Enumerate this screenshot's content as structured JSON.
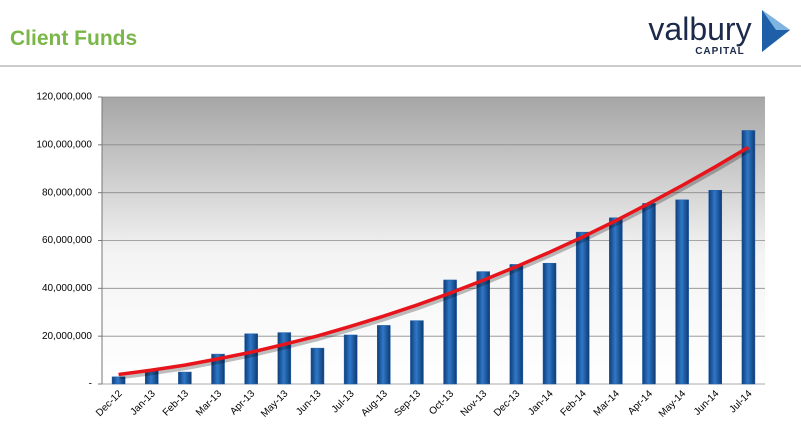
{
  "header": {
    "title": "Client Funds",
    "logo": "valbury",
    "logo_sub": "CAPITAL"
  },
  "chart_data": {
    "type": "bar",
    "categories": [
      "Dec-12",
      "Jan-13",
      "Feb-13",
      "Mar-13",
      "Apr-13",
      "May-13",
      "Jun-13",
      "Jul-13",
      "Aug-13",
      "Sep-13",
      "Oct-13",
      "Nov-13",
      "Dec-13",
      "Jan-14",
      "Feb-14",
      "Mar-14",
      "Apr-14",
      "May-14",
      "Jun-14",
      "Jul-14"
    ],
    "values": [
      3000000,
      6000000,
      5000000,
      12500000,
      21000000,
      21500000,
      15000000,
      20500000,
      24500000,
      26500000,
      43500000,
      47000000,
      50000000,
      50500000,
      63500000,
      69500000,
      75500000,
      77000000,
      81000000,
      106000000
    ],
    "color": "#1f5fa8",
    "trendline": {
      "color": "#e8141b",
      "values": [
        4000000,
        5800000,
        7900000,
        10500000,
        13300000,
        16600000,
        20100000,
        24100000,
        28400000,
        33000000,
        38000000,
        43400000,
        49100000,
        55100000,
        61500000,
        68300000,
        75500000,
        83000000,
        90800000,
        99000000
      ]
    },
    "ylim": [
      0,
      120000000
    ],
    "yticks": [
      {
        "value": 0,
        "label": "-"
      },
      {
        "value": 20000000,
        "label": "20,000,000"
      },
      {
        "value": 40000000,
        "label": "40,000,000"
      },
      {
        "value": 60000000,
        "label": "60,000,000"
      },
      {
        "value": 80000000,
        "label": "80,000,000"
      },
      {
        "value": 100000000,
        "label": "100,000,000"
      },
      {
        "value": 120000000,
        "label": "120,000,000"
      }
    ],
    "grid": true
  }
}
